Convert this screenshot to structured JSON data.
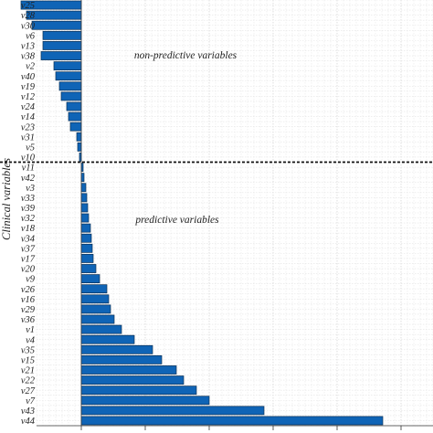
{
  "chart_data": {
    "type": "bar",
    "orientation": "horizontal",
    "categories": [
      "v25",
      "v28",
      "v30",
      "v6",
      "v13",
      "v38",
      "v2",
      "v40",
      "v19",
      "v12",
      "v24",
      "v14",
      "v23",
      "v31",
      "v5",
      "v10",
      "v11",
      "v42",
      "v3",
      "v33",
      "v39",
      "v32",
      "v18",
      "v34",
      "v37",
      "v17",
      "v20",
      "v9",
      "v26",
      "v16",
      "v29",
      "v36",
      "v1",
      "v4",
      "v35",
      "v15",
      "v21",
      "v22",
      "v27",
      "v7",
      "v43",
      "v44"
    ],
    "values": [
      -3.3,
      -3.0,
      -2.7,
      -2.1,
      -2.1,
      -2.2,
      -1.5,
      -1.4,
      -1.2,
      -1.1,
      -0.8,
      -0.7,
      -0.6,
      -0.25,
      -0.2,
      -0.1,
      0.1,
      0.15,
      0.25,
      0.3,
      0.35,
      0.4,
      0.5,
      0.55,
      0.6,
      0.65,
      0.8,
      1.0,
      1.4,
      1.5,
      1.6,
      1.8,
      2.2,
      2.9,
      3.9,
      4.4,
      5.2,
      5.6,
      6.3,
      7.0,
      10.0,
      16.5
    ],
    "xlim": [
      -4.2,
      17.5
    ],
    "threshold_between": [
      "v10",
      "v11"
    ],
    "ylabel": "Clinical variables",
    "xlabel": "",
    "grid": true,
    "annotations": {
      "top": "non-predictive variables",
      "bottom": "predictive variables"
    },
    "bar_color": "#0f64b6"
  }
}
